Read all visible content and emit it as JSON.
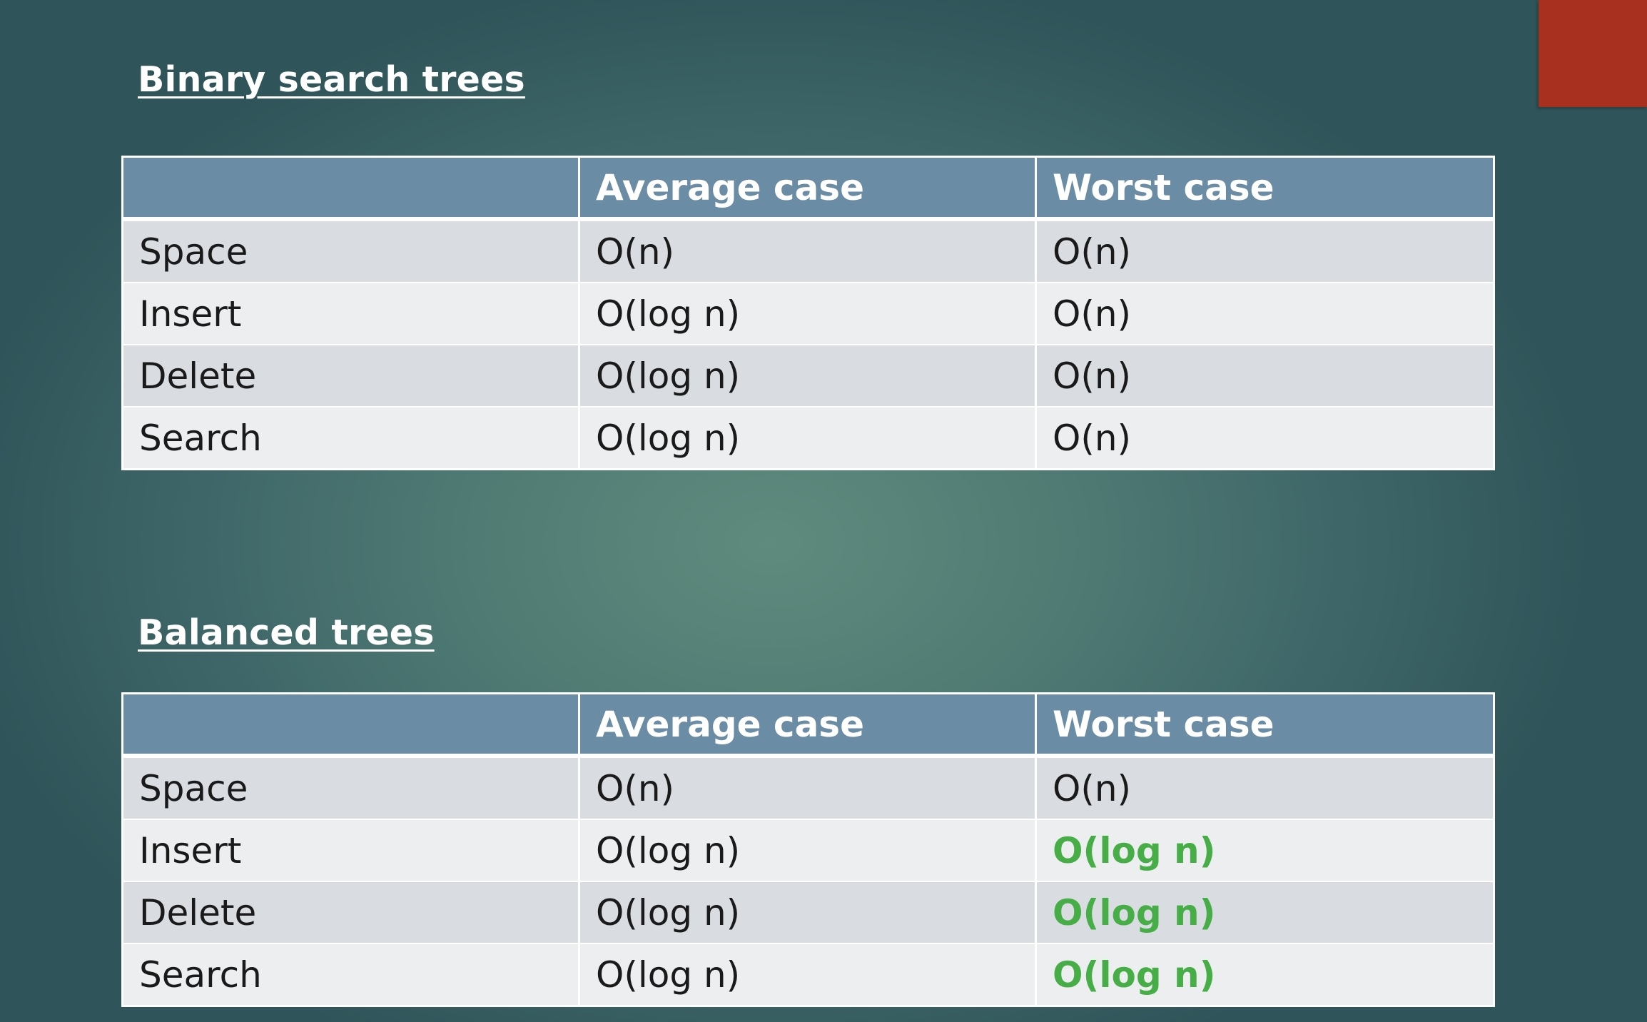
{
  "colors": {
    "header_bg": "#6a8ca5",
    "row_odd_bg": "#d9dde2",
    "row_even_bg": "#eceeef",
    "highlight_text": "#46ad47",
    "accent_block": "#a8301f"
  },
  "sections": [
    {
      "title": "Binary search trees",
      "columns": [
        "",
        "Average case",
        "Worst case"
      ],
      "rows": [
        {
          "op": "Space",
          "average": "O(n)",
          "worst": "O(n)"
        },
        {
          "op": "Insert",
          "average": "O(log n)",
          "worst": "O(n)"
        },
        {
          "op": "Delete",
          "average": "O(log n)",
          "worst": "O(n)"
        },
        {
          "op": "Search",
          "average": "O(log n)",
          "worst": "O(n)"
        }
      ]
    },
    {
      "title": "Balanced trees",
      "columns": [
        "",
        "Average case",
        "Worst case"
      ],
      "rows": [
        {
          "op": "Space",
          "average": "O(n)",
          "worst": "O(n)"
        },
        {
          "op": "Insert",
          "average": "O(log n)",
          "worst": "O(log n)",
          "worst_highlighted": true
        },
        {
          "op": "Delete",
          "average": "O(log n)",
          "worst": "O(log n)",
          "worst_highlighted": true
        },
        {
          "op": "Search",
          "average": "O(log n)",
          "worst": "O(log n)",
          "worst_highlighted": true
        }
      ]
    }
  ]
}
